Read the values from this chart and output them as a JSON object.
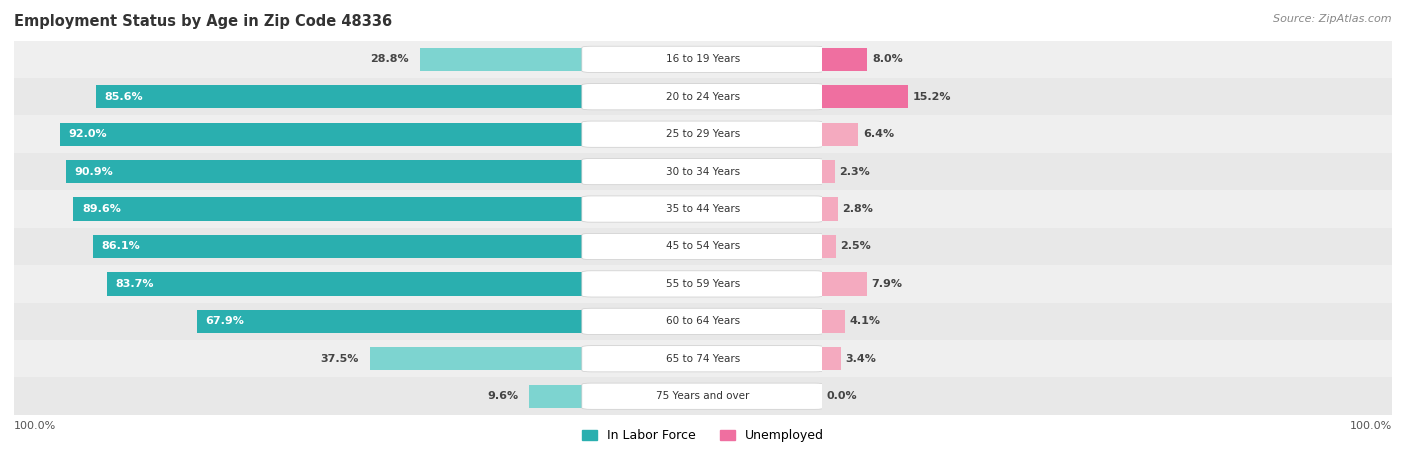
{
  "title": "Employment Status by Age in Zip Code 48336",
  "source": "Source: ZipAtlas.com",
  "categories": [
    "16 to 19 Years",
    "20 to 24 Years",
    "25 to 29 Years",
    "30 to 34 Years",
    "35 to 44 Years",
    "45 to 54 Years",
    "55 to 59 Years",
    "60 to 64 Years",
    "65 to 74 Years",
    "75 Years and over"
  ],
  "labor_force": [
    28.8,
    85.6,
    92.0,
    90.9,
    89.6,
    86.1,
    83.7,
    67.9,
    37.5,
    9.6
  ],
  "unemployed": [
    8.0,
    15.2,
    6.4,
    2.3,
    2.8,
    2.5,
    7.9,
    4.1,
    3.4,
    0.0
  ],
  "labor_force_color_dark": "#2AAFAF",
  "labor_force_color_light": "#7DD4D0",
  "unemployed_color_dark": "#EF6FA0",
  "unemployed_color_light": "#F4AABF",
  "title_fontsize": 10.5,
  "source_fontsize": 8,
  "label_fontsize": 8,
  "axis_max": 100,
  "legend_label_labor": "In Labor Force",
  "legend_label_unemployed": "Unemployed",
  "row_colors": [
    "#EFEFEF",
    "#E8E8E8"
  ]
}
